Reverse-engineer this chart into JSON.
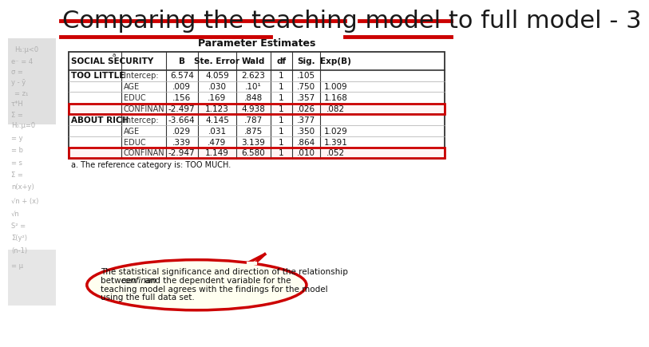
{
  "title": "Comparing the teaching model to full model - 3",
  "title_fontsize": 22,
  "title_color": "#1a1a1a",
  "bg_color": "#ffffff",
  "red_line_color": "#cc0000",
  "table_title": "Parameter Estimates",
  "col_headers": [
    "SOCIAL SECURITY",
    "",
    "B",
    "Ste. Error",
    "Wald",
    "df",
    "Sig.",
    "Exp(B)"
  ],
  "rows": [
    [
      "TOO LITTLE",
      "Intercep:",
      "6.574",
      "4.059",
      "2.623",
      "1",
      ".105",
      ""
    ],
    [
      "",
      "AGE",
      ".009",
      ".030",
      ".10¹",
      "1",
      ".750",
      "1.009"
    ],
    [
      "",
      "EDUC",
      ".156",
      ".169",
      ".848",
      "1",
      ".357",
      "1.168"
    ],
    [
      "",
      "CONFINAN",
      "-2.497",
      "1.123",
      "4.938",
      "1",
      ".026",
      ".082"
    ],
    [
      "ABOUT RICH",
      "Intercep:",
      "-3.664",
      "4.145",
      ".787",
      "1",
      ".377",
      ""
    ],
    [
      "",
      "AGE",
      ".029",
      ".031",
      ".875",
      "1",
      ".350",
      "1.029"
    ],
    [
      "",
      "EDUC",
      ".339",
      ".479",
      "3.139",
      "1",
      ".864",
      "1.391"
    ],
    [
      "",
      "CONFINAN",
      "-2.947",
      "1.149",
      "6.580",
      "1",
      ".010",
      ".052"
    ]
  ],
  "highlighted_rows": [
    3,
    7
  ],
  "footnote": "a. The reference category is: TOO MUCH.",
  "callout_line1": "The statistical significance and direction of the relationship",
  "callout_line2_pre": "between ",
  "callout_line2_italic": "confinan",
  "callout_line2_post": " and the dependent variable for the",
  "callout_line3": "teaching model agrees with the findings for the model",
  "callout_line4": "using the full data set."
}
